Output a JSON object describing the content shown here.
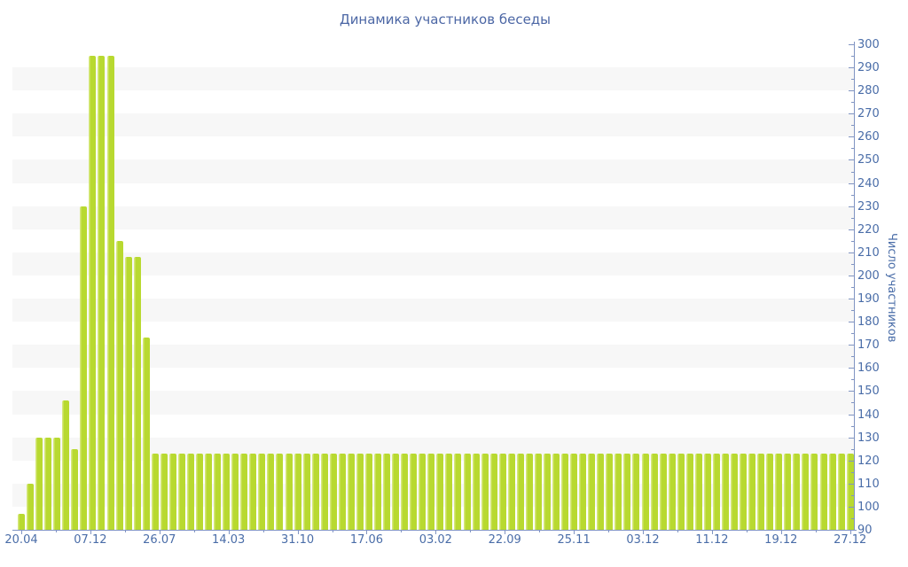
{
  "chart_data": {
    "type": "bar",
    "title": "Динамика участников беседы",
    "ylabel": "Число участников",
    "ylim": [
      90,
      300
    ],
    "y_tick_step": 10,
    "y_minor_tick_step": 5,
    "x_tick_labels": [
      "20.04",
      "07.12",
      "26.07",
      "14.03",
      "31.10",
      "17.06",
      "03.02",
      "22.09",
      "25.11",
      "03.12",
      "11.12",
      "19.12",
      "27.12"
    ],
    "values": [
      97,
      110,
      130,
      130,
      130,
      146,
      125,
      230,
      295,
      295,
      295,
      215,
      208,
      208,
      173,
      123,
      123,
      123,
      123,
      123,
      123,
      123,
      123,
      123,
      123,
      123,
      123,
      123,
      123,
      123,
      123,
      123,
      123,
      123,
      123,
      123,
      123,
      123,
      123,
      123,
      123,
      123,
      123,
      123,
      123,
      123,
      123,
      123,
      123,
      123,
      123,
      123,
      123,
      123,
      123,
      123,
      123,
      123,
      123,
      123,
      123,
      123,
      123,
      123,
      123,
      123,
      123,
      123,
      123,
      123,
      123,
      123,
      123,
      123,
      123,
      123,
      123,
      123,
      123,
      123,
      123,
      123,
      123,
      123,
      123,
      123,
      123,
      123,
      123,
      123,
      123,
      123,
      123,
      123
    ],
    "grid": "alternating horizontal gray bands every 10 units",
    "legend": "none",
    "colors": {
      "bar": "#b8d930",
      "bar_highlight": "#d6e87c",
      "band": "#f7f7f7",
      "axis": "#8094c2",
      "tick_label": "#4a6da8",
      "title": "#4c67a5",
      "background": "#ffffff"
    }
  }
}
